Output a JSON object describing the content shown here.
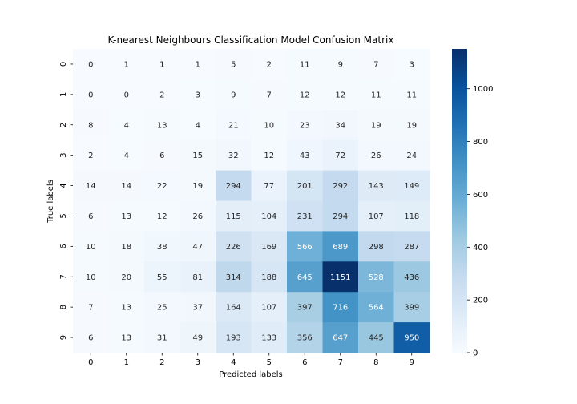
{
  "chart_data": {
    "type": "heatmap",
    "title": "K-nearest Neighbours Classification Model Confusion Matrix",
    "xlabel": "Predicted labels",
    "ylabel": "True labels",
    "x_categories": [
      "0",
      "1",
      "2",
      "3",
      "4",
      "5",
      "6",
      "7",
      "8",
      "9"
    ],
    "y_categories": [
      "0",
      "1",
      "2",
      "3",
      "4",
      "5",
      "6",
      "7",
      "8",
      "9"
    ],
    "matrix": [
      [
        0,
        1,
        1,
        1,
        5,
        2,
        11,
        9,
        7,
        3
      ],
      [
        0,
        0,
        2,
        3,
        9,
        7,
        12,
        12,
        11,
        11
      ],
      [
        8,
        4,
        13,
        4,
        21,
        10,
        23,
        34,
        19,
        19
      ],
      [
        2,
        4,
        6,
        15,
        32,
        12,
        43,
        72,
        26,
        24
      ],
      [
        14,
        14,
        22,
        19,
        294,
        77,
        201,
        292,
        143,
        149
      ],
      [
        6,
        13,
        12,
        26,
        115,
        104,
        231,
        294,
        107,
        118
      ],
      [
        10,
        18,
        38,
        47,
        226,
        169,
        566,
        689,
        298,
        287
      ],
      [
        10,
        20,
        55,
        81,
        314,
        188,
        645,
        1151,
        528,
        436
      ],
      [
        7,
        13,
        25,
        37,
        164,
        107,
        397,
        716,
        564,
        399
      ],
      [
        6,
        13,
        31,
        49,
        193,
        133,
        356,
        647,
        445,
        950
      ]
    ],
    "colormap": "Blues",
    "value_range": [
      0,
      1151
    ],
    "colorbar_ticks": [
      0,
      200,
      400,
      600,
      800,
      1000
    ],
    "annotations": true
  }
}
